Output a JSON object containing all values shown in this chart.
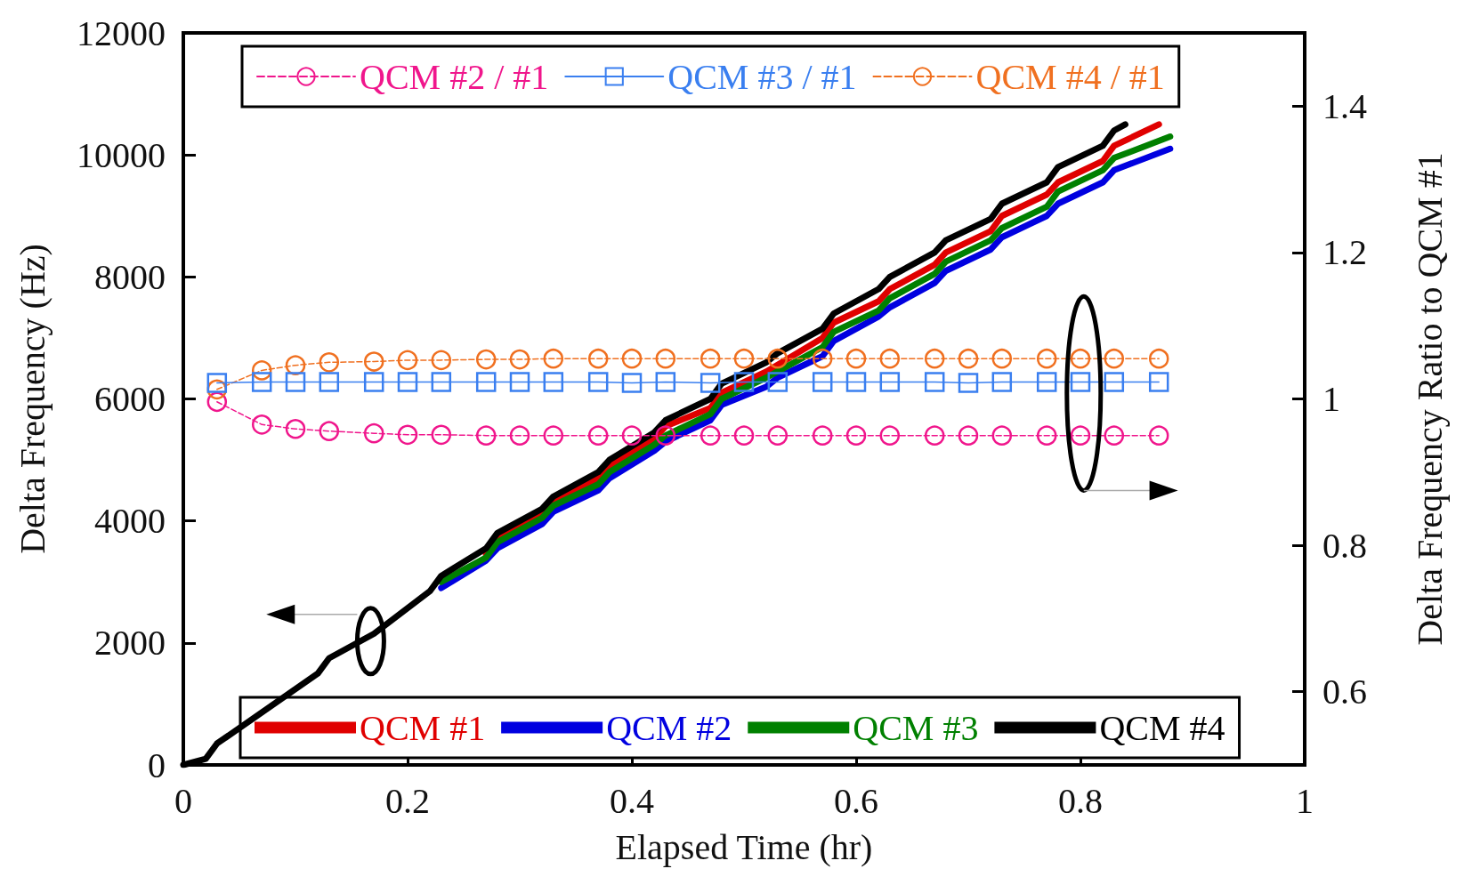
{
  "chart_data": {
    "type": "line",
    "xlabel": "Elapsed Time (hr)",
    "ylabel": "Delta Frequency (Hz)",
    "y2label": "Delta Frequency Ratio to QCM #1",
    "xlim": [
      0,
      1
    ],
    "xticks": [
      0,
      0.2,
      0.4,
      0.6,
      0.8,
      1
    ],
    "ylim": [
      0,
      12000
    ],
    "yticks": [
      0,
      2000,
      4000,
      6000,
      8000,
      10000,
      12000
    ],
    "y2lim": [
      0.5,
      1.5
    ],
    "y2ticks": [
      0.6,
      0.8,
      1,
      1.2,
      1.4
    ],
    "legend": "bottom left",
    "grid": false,
    "marker": "none",
    "line_style": "solid",
    "series": [
      {
        "name": "QCM #1",
        "color": "#e00000",
        "x": [
          0.27,
          0.28,
          0.32,
          0.33,
          0.37,
          0.38,
          0.42,
          0.43,
          0.47,
          0.48,
          0.52,
          0.57,
          0.58,
          0.62,
          0.63,
          0.67,
          0.68,
          0.72,
          0.73,
          0.77,
          0.78,
          0.82,
          0.83,
          0.87
        ],
        "values": [
          3450,
          3700,
          4100,
          4300,
          4700,
          4900,
          5350,
          5550,
          5850,
          6100,
          6450,
          7000,
          7250,
          7600,
          7800,
          8200,
          8400,
          8750,
          9000,
          9350,
          9550,
          9900,
          10150,
          10500
        ]
      },
      {
        "name": "QCM #2",
        "color": "#0000e0",
        "x": [
          0.23,
          0.27,
          0.28,
          0.32,
          0.33,
          0.37,
          0.38,
          0.42,
          0.43,
          0.47,
          0.48,
          0.52,
          0.53,
          0.57,
          0.58,
          0.62,
          0.63,
          0.67,
          0.68,
          0.72,
          0.73,
          0.77,
          0.78,
          0.82,
          0.83,
          0.88
        ],
        "values": [
          2900,
          3350,
          3550,
          3950,
          4150,
          4500,
          4700,
          5150,
          5300,
          5650,
          5900,
          6200,
          6350,
          6700,
          6950,
          7350,
          7500,
          7900,
          8100,
          8450,
          8650,
          9000,
          9200,
          9550,
          9750,
          10100
        ]
      },
      {
        "name": "QCM #3",
        "color": "#008000",
        "x": [
          0.23,
          0.27,
          0.28,
          0.32,
          0.33,
          0.37,
          0.38,
          0.42,
          0.43,
          0.47,
          0.48,
          0.52,
          0.53,
          0.57,
          0.58,
          0.62,
          0.63,
          0.67,
          0.68,
          0.72,
          0.73,
          0.77,
          0.78,
          0.82,
          0.83,
          0.88
        ],
        "values": [
          3000,
          3400,
          3650,
          4050,
          4250,
          4600,
          4800,
          5250,
          5400,
          5750,
          6000,
          6350,
          6450,
          6850,
          7100,
          7450,
          7650,
          8050,
          8250,
          8600,
          8800,
          9150,
          9400,
          9750,
          9950,
          10300
        ]
      },
      {
        "name": "QCM #4",
        "color": "#000000",
        "x": [
          0,
          0.02,
          0.03,
          0.12,
          0.13,
          0.17,
          0.22,
          0.23,
          0.27,
          0.28,
          0.32,
          0.33,
          0.37,
          0.38,
          0.42,
          0.43,
          0.47,
          0.48,
          0.52,
          0.53,
          0.57,
          0.58,
          0.62,
          0.63,
          0.67,
          0.68,
          0.72,
          0.73,
          0.77,
          0.78,
          0.82,
          0.83,
          0.84
        ],
        "values": [
          0,
          100,
          350,
          1500,
          1750,
          2150,
          2850,
          3100,
          3550,
          3800,
          4200,
          4400,
          4800,
          5000,
          5450,
          5650,
          6000,
          6250,
          6600,
          6750,
          7150,
          7400,
          7800,
          8000,
          8400,
          8600,
          8950,
          9200,
          9550,
          9800,
          10150,
          10400,
          10500
        ]
      },
      {
        "name": "QCM #2 / #1",
        "color": "#f0168c",
        "axis": "y2",
        "marker": "circle",
        "line_style": "dashed",
        "x": [
          0.03,
          0.07,
          0.1,
          0.13,
          0.17,
          0.2,
          0.23,
          0.27,
          0.3,
          0.33,
          0.37,
          0.4,
          0.43,
          0.47,
          0.5,
          0.53,
          0.57,
          0.6,
          0.63,
          0.67,
          0.7,
          0.73,
          0.77,
          0.8,
          0.83,
          0.87
        ],
        "values": [
          0.996,
          0.965,
          0.959,
          0.956,
          0.953,
          0.951,
          0.951,
          0.95,
          0.95,
          0.95,
          0.95,
          0.95,
          0.95,
          0.95,
          0.95,
          0.95,
          0.95,
          0.95,
          0.95,
          0.95,
          0.95,
          0.95,
          0.95,
          0.95,
          0.95,
          0.95
        ]
      },
      {
        "name": "QCM #3 / #1",
        "color": "#3a7ff0",
        "axis": "y2",
        "marker": "square",
        "line_style": "solid",
        "x": [
          0.03,
          0.07,
          0.1,
          0.13,
          0.17,
          0.2,
          0.23,
          0.27,
          0.3,
          0.33,
          0.37,
          0.4,
          0.43,
          0.47,
          0.5,
          0.53,
          0.57,
          0.6,
          0.63,
          0.67,
          0.7,
          0.73,
          0.77,
          0.8,
          0.83,
          0.87
        ],
        "values": [
          1.022,
          1.023,
          1.023,
          1.023,
          1.023,
          1.023,
          1.023,
          1.023,
          1.023,
          1.023,
          1.023,
          1.022,
          1.023,
          1.022,
          1.023,
          1.023,
          1.023,
          1.023,
          1.023,
          1.023,
          1.022,
          1.023,
          1.023,
          1.023,
          1.023,
          1.023
        ]
      },
      {
        "name": "QCM #4 / #1",
        "color": "#f07020",
        "axis": "y2",
        "marker": "circle",
        "line_style": "dashed",
        "x": [
          0.03,
          0.07,
          0.1,
          0.13,
          0.17,
          0.2,
          0.23,
          0.27,
          0.3,
          0.33,
          0.37,
          0.4,
          0.43,
          0.47,
          0.5,
          0.53,
          0.57,
          0.6,
          0.63,
          0.67,
          0.7,
          0.73,
          0.77,
          0.8,
          0.83,
          0.87
        ],
        "values": [
          1.013,
          1.039,
          1.046,
          1.05,
          1.051,
          1.053,
          1.053,
          1.054,
          1.054,
          1.055,
          1.055,
          1.055,
          1.055,
          1.055,
          1.055,
          1.055,
          1.055,
          1.055,
          1.055,
          1.055,
          1.055,
          1.055,
          1.055,
          1.055,
          1.055,
          1.055
        ]
      }
    ]
  }
}
